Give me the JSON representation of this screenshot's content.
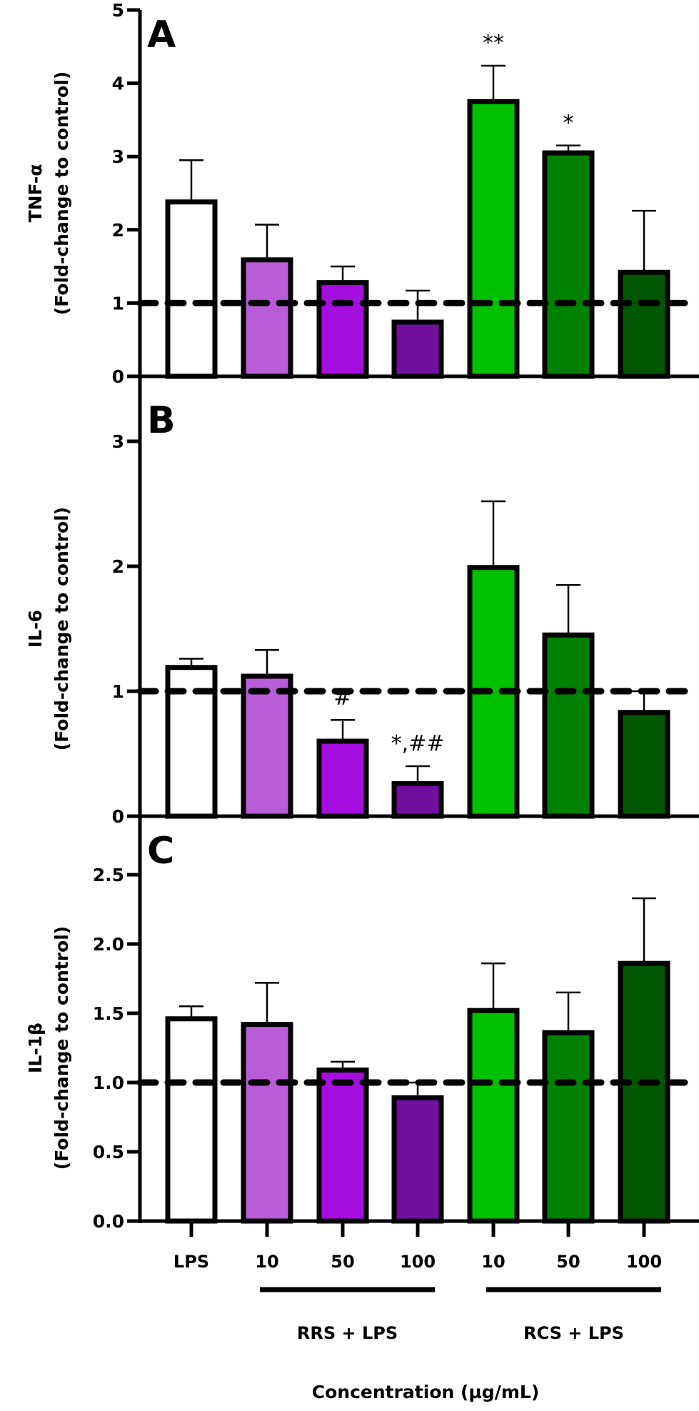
{
  "chart_data": [
    {
      "type": "bar",
      "panel": "A",
      "ylabel_line1": "TNF-α",
      "ylabel_line2": "(Fold-change to control)",
      "ylim": [
        0,
        5
      ],
      "yticks": [
        0,
        1,
        2,
        3,
        4,
        5
      ],
      "ytick_labels": [
        "0",
        "1",
        "2",
        "3",
        "4",
        "5"
      ],
      "reference_line": 1,
      "categories": [
        "LPS",
        "RRS 10",
        "RRS 50",
        "RRS 100",
        "RCS 10",
        "RCS 50",
        "RCS 100"
      ],
      "values": [
        2.38,
        1.59,
        1.28,
        0.74,
        3.75,
        3.05,
        1.42
      ],
      "errors_upper": [
        2.95,
        2.07,
        1.5,
        1.17,
        4.24,
        3.15,
        2.26
      ],
      "annotations": [
        "",
        "",
        "",
        "",
        "**",
        "*",
        ""
      ]
    },
    {
      "type": "bar",
      "panel": "B",
      "ylabel_line1": "IL-6",
      "ylabel_line2": "(Fold-change to control)",
      "ylim": [
        0,
        3
      ],
      "yticks": [
        0,
        1,
        2,
        3
      ],
      "ytick_labels": [
        "0",
        "1",
        "2",
        "3"
      ],
      "reference_line": 1,
      "categories": [
        "LPS",
        "RRS 10",
        "RRS 50",
        "RRS 100",
        "RCS 10",
        "RCS 50",
        "RCS 100"
      ],
      "values": [
        1.19,
        1.12,
        0.6,
        0.26,
        1.99,
        1.45,
        0.83
      ],
      "errors_upper": [
        1.26,
        1.33,
        0.77,
        0.4,
        2.52,
        1.85,
        1.0
      ],
      "annotations": [
        "",
        "",
        "#",
        "*,##",
        "",
        "",
        ""
      ]
    },
    {
      "type": "bar",
      "panel": "C",
      "ylabel_line1": "IL-1β",
      "ylabel_line2": "(Fold-change to control)",
      "ylim": [
        0,
        2.5
      ],
      "yticks": [
        0,
        0.5,
        1.0,
        1.5,
        2.0,
        2.5
      ],
      "ytick_labels": [
        "0.0",
        "0.5",
        "1.0",
        "1.5",
        "2.0",
        "2.5"
      ],
      "reference_line": 1,
      "categories": [
        "LPS",
        "RRS 10",
        "RRS 50",
        "RRS 100",
        "RCS 10",
        "RCS 50",
        "RCS 100"
      ],
      "values": [
        1.46,
        1.42,
        1.09,
        0.89,
        1.52,
        1.36,
        1.86
      ],
      "errors_upper": [
        1.55,
        1.72,
        1.15,
        1.0,
        1.86,
        1.65,
        2.33
      ],
      "annotations": [
        "",
        "",
        "",
        "",
        "",
        "",
        ""
      ]
    }
  ],
  "bar_colors": [
    "#ffffff",
    "#b95cd8",
    "#a60ee0",
    "#730fa0",
    "#00c000",
    "#008000",
    "#005700"
  ],
  "x_axis": {
    "tick_labels": [
      "LPS",
      "10",
      "50",
      "100",
      "10",
      "50",
      "100"
    ],
    "groups": [
      {
        "label": "RRS + LPS",
        "from": 1,
        "to": 3
      },
      {
        "label": "RCS + LPS",
        "from": 4,
        "to": 6
      }
    ],
    "title": "Concentration (µg/mL)"
  }
}
